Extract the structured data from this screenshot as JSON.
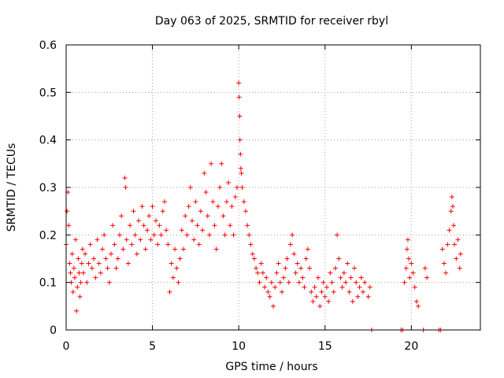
{
  "chart_data": {
    "type": "scatter",
    "title": "Day 063 of 2025, SRMTID for receiver rbyl",
    "xlabel": "GPS time / hours",
    "ylabel": "SRMTID / TECUs",
    "xlim": [
      0,
      24
    ],
    "ylim": [
      0,
      0.6
    ],
    "xticks": [
      0,
      5,
      10,
      15,
      20
    ],
    "xtick_labels": [
      "0",
      "5",
      "10",
      "15",
      "20"
    ],
    "yticks": [
      0,
      0.1,
      0.2,
      0.3,
      0.4,
      0.5,
      0.6
    ],
    "ytick_labels": [
      "0",
      "0.1",
      "0.2",
      "0.3",
      "0.4",
      "0.5",
      "0.6"
    ],
    "grid": true,
    "marker": "+",
    "color": "#ff0000",
    "series": [
      {
        "name": "SRMTID",
        "points": [
          [
            0.0,
            0.18
          ],
          [
            0.05,
            0.25
          ],
          [
            0.1,
            0.29
          ],
          [
            0.15,
            0.22
          ],
          [
            0.2,
            0.14
          ],
          [
            0.25,
            0.12
          ],
          [
            0.3,
            0.1
          ],
          [
            0.35,
            0.16
          ],
          [
            0.4,
            0.08
          ],
          [
            0.45,
            0.13
          ],
          [
            0.5,
            0.11
          ],
          [
            0.55,
            0.19
          ],
          [
            0.6,
            0.04
          ],
          [
            0.65,
            0.09
          ],
          [
            0.7,
            0.15
          ],
          [
            0.75,
            0.12
          ],
          [
            0.8,
            0.07
          ],
          [
            0.85,
            0.1
          ],
          [
            0.9,
            0.14
          ],
          [
            0.95,
            0.17
          ],
          [
            1.0,
            0.12
          ],
          [
            1.1,
            0.16
          ],
          [
            1.2,
            0.1
          ],
          [
            1.3,
            0.14
          ],
          [
            1.4,
            0.18
          ],
          [
            1.5,
            0.13
          ],
          [
            1.6,
            0.15
          ],
          [
            1.7,
            0.11
          ],
          [
            1.8,
            0.19
          ],
          [
            1.9,
            0.14
          ],
          [
            2.0,
            0.12
          ],
          [
            2.1,
            0.17
          ],
          [
            2.2,
            0.2
          ],
          [
            2.3,
            0.15
          ],
          [
            2.4,
            0.13
          ],
          [
            2.5,
            0.1
          ],
          [
            2.6,
            0.16
          ],
          [
            2.7,
            0.22
          ],
          [
            2.8,
            0.18
          ],
          [
            2.9,
            0.13
          ],
          [
            3.0,
            0.15
          ],
          [
            3.1,
            0.2
          ],
          [
            3.2,
            0.24
          ],
          [
            3.3,
            0.17
          ],
          [
            3.4,
            0.32
          ],
          [
            3.45,
            0.3
          ],
          [
            3.5,
            0.19
          ],
          [
            3.6,
            0.14
          ],
          [
            3.7,
            0.22
          ],
          [
            3.8,
            0.18
          ],
          [
            3.9,
            0.25
          ],
          [
            4.0,
            0.2
          ],
          [
            4.1,
            0.16
          ],
          [
            4.2,
            0.23
          ],
          [
            4.3,
            0.19
          ],
          [
            4.4,
            0.26
          ],
          [
            4.5,
            0.22
          ],
          [
            4.6,
            0.17
          ],
          [
            4.7,
            0.21
          ],
          [
            4.8,
            0.24
          ],
          [
            4.9,
            0.19
          ],
          [
            5.0,
            0.26
          ],
          [
            5.1,
            0.2
          ],
          [
            5.2,
            0.23
          ],
          [
            5.3,
            0.18
          ],
          [
            5.4,
            0.22
          ],
          [
            5.5,
            0.2
          ],
          [
            5.6,
            0.25
          ],
          [
            5.7,
            0.27
          ],
          [
            5.8,
            0.21
          ],
          [
            5.9,
            0.18
          ],
          [
            6.0,
            0.08
          ],
          [
            6.1,
            0.14
          ],
          [
            6.2,
            0.11
          ],
          [
            6.3,
            0.17
          ],
          [
            6.4,
            0.13
          ],
          [
            6.5,
            0.1
          ],
          [
            6.6,
            0.15
          ],
          [
            6.7,
            0.21
          ],
          [
            6.8,
            0.17
          ],
          [
            6.9,
            0.24
          ],
          [
            7.0,
            0.2
          ],
          [
            7.1,
            0.26
          ],
          [
            7.2,
            0.3
          ],
          [
            7.3,
            0.23
          ],
          [
            7.4,
            0.19
          ],
          [
            7.5,
            0.27
          ],
          [
            7.6,
            0.22
          ],
          [
            7.7,
            0.18
          ],
          [
            7.8,
            0.25
          ],
          [
            7.9,
            0.21
          ],
          [
            8.0,
            0.33
          ],
          [
            8.1,
            0.29
          ],
          [
            8.2,
            0.24
          ],
          [
            8.3,
            0.2
          ],
          [
            8.4,
            0.35
          ],
          [
            8.5,
            0.27
          ],
          [
            8.6,
            0.22
          ],
          [
            8.7,
            0.17
          ],
          [
            8.8,
            0.26
          ],
          [
            8.9,
            0.3
          ],
          [
            9.0,
            0.35
          ],
          [
            9.1,
            0.24
          ],
          [
            9.2,
            0.2
          ],
          [
            9.3,
            0.27
          ],
          [
            9.4,
            0.31
          ],
          [
            9.5,
            0.22
          ],
          [
            9.6,
            0.26
          ],
          [
            9.7,
            0.2
          ],
          [
            9.8,
            0.28
          ],
          [
            9.9,
            0.3
          ],
          [
            10.0,
            0.52
          ],
          [
            10.02,
            0.49
          ],
          [
            10.05,
            0.45
          ],
          [
            10.07,
            0.4
          ],
          [
            10.1,
            0.37
          ],
          [
            10.12,
            0.34
          ],
          [
            10.15,
            0.33
          ],
          [
            10.2,
            0.3
          ],
          [
            10.3,
            0.27
          ],
          [
            10.4,
            0.25
          ],
          [
            10.5,
            0.22
          ],
          [
            10.6,
            0.2
          ],
          [
            10.7,
            0.18
          ],
          [
            10.8,
            0.16
          ],
          [
            10.9,
            0.15
          ],
          [
            11.0,
            0.13
          ],
          [
            11.1,
            0.12
          ],
          [
            11.2,
            0.1
          ],
          [
            11.3,
            0.14
          ],
          [
            11.4,
            0.12
          ],
          [
            11.5,
            0.09
          ],
          [
            11.6,
            0.11
          ],
          [
            11.7,
            0.08
          ],
          [
            11.8,
            0.07
          ],
          [
            11.9,
            0.1
          ],
          [
            12.0,
            0.05
          ],
          [
            12.1,
            0.09
          ],
          [
            12.2,
            0.12
          ],
          [
            12.3,
            0.14
          ],
          [
            12.4,
            0.1
          ],
          [
            12.5,
            0.08
          ],
          [
            12.6,
            0.11
          ],
          [
            12.7,
            0.13
          ],
          [
            12.8,
            0.15
          ],
          [
            12.9,
            0.1
          ],
          [
            13.0,
            0.18
          ],
          [
            13.1,
            0.2
          ],
          [
            13.2,
            0.16
          ],
          [
            13.3,
            0.12
          ],
          [
            13.4,
            0.14
          ],
          [
            13.5,
            0.1
          ],
          [
            13.6,
            0.13
          ],
          [
            13.7,
            0.11
          ],
          [
            13.8,
            0.09
          ],
          [
            13.9,
            0.15
          ],
          [
            14.0,
            0.17
          ],
          [
            14.1,
            0.13
          ],
          [
            14.2,
            0.08
          ],
          [
            14.3,
            0.06
          ],
          [
            14.4,
            0.09
          ],
          [
            14.5,
            0.07
          ],
          [
            14.6,
            0.11
          ],
          [
            14.7,
            0.05
          ],
          [
            14.8,
            0.08
          ],
          [
            14.9,
            0.1
          ],
          [
            15.0,
            0.07
          ],
          [
            15.1,
            0.09
          ],
          [
            15.2,
            0.06
          ],
          [
            15.3,
            0.12
          ],
          [
            15.4,
            0.1
          ],
          [
            15.5,
            0.08
          ],
          [
            15.6,
            0.13
          ],
          [
            15.7,
            0.2
          ],
          [
            15.8,
            0.15
          ],
          [
            15.9,
            0.11
          ],
          [
            16.0,
            0.09
          ],
          [
            16.1,
            0.12
          ],
          [
            16.2,
            0.1
          ],
          [
            16.3,
            0.14
          ],
          [
            16.4,
            0.08
          ],
          [
            16.5,
            0.11
          ],
          [
            16.6,
            0.06
          ],
          [
            16.7,
            0.13
          ],
          [
            16.8,
            0.1
          ],
          [
            16.9,
            0.07
          ],
          [
            17.0,
            0.09
          ],
          [
            17.1,
            0.11
          ],
          [
            17.2,
            0.08
          ],
          [
            17.3,
            0.1
          ],
          [
            17.5,
            0.07
          ],
          [
            17.6,
            0.09
          ],
          [
            17.7,
            0.0
          ],
          [
            19.4,
            0.0
          ],
          [
            19.5,
            0.0
          ],
          [
            19.6,
            0.1
          ],
          [
            19.7,
            0.13
          ],
          [
            19.75,
            0.17
          ],
          [
            19.8,
            0.19
          ],
          [
            19.85,
            0.15
          ],
          [
            19.9,
            0.11
          ],
          [
            20.0,
            0.14
          ],
          [
            20.1,
            0.12
          ],
          [
            20.2,
            0.09
          ],
          [
            20.3,
            0.06
          ],
          [
            20.4,
            0.05
          ],
          [
            20.7,
            0.0
          ],
          [
            20.8,
            0.13
          ],
          [
            20.9,
            0.11
          ],
          [
            21.6,
            0.0
          ],
          [
            21.7,
            0.0
          ],
          [
            21.8,
            0.17
          ],
          [
            21.9,
            0.14
          ],
          [
            22.0,
            0.12
          ],
          [
            22.1,
            0.18
          ],
          [
            22.2,
            0.21
          ],
          [
            22.3,
            0.25
          ],
          [
            22.35,
            0.28
          ],
          [
            22.4,
            0.26
          ],
          [
            22.45,
            0.22
          ],
          [
            22.5,
            0.18
          ],
          [
            22.6,
            0.15
          ],
          [
            22.7,
            0.19
          ],
          [
            22.8,
            0.13
          ],
          [
            22.85,
            0.16
          ]
        ]
      }
    ]
  }
}
